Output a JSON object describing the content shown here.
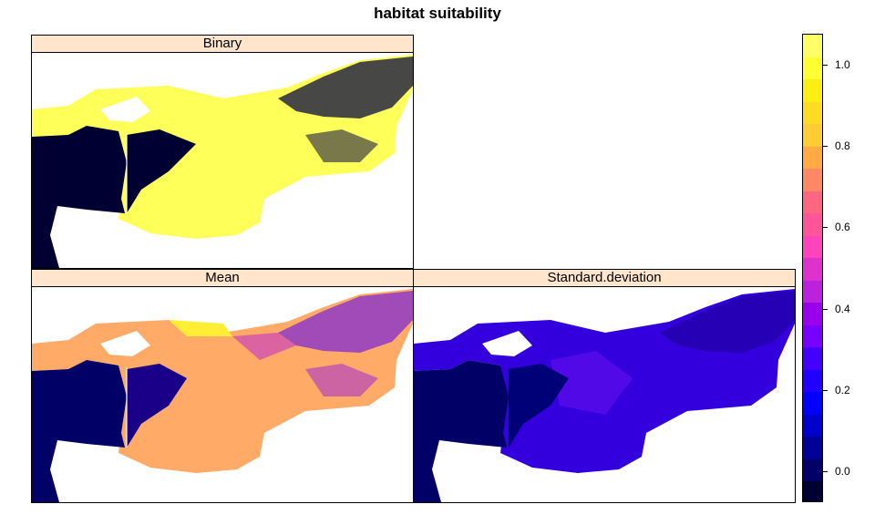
{
  "title": "habitat suitability",
  "panels": [
    {
      "id": "binary",
      "label": "Binary"
    },
    {
      "id": "mean",
      "label": "Mean"
    },
    {
      "id": "sd",
      "label": "Standard.deviation"
    }
  ],
  "colorkey": {
    "range": [
      -0.075,
      1.075
    ],
    "ticks": [
      {
        "value": 0.0,
        "label": "0.0"
      },
      {
        "value": 0.2,
        "label": "0.2"
      },
      {
        "value": 0.4,
        "label": "0.4"
      },
      {
        "value": 0.6,
        "label": "0.6"
      },
      {
        "value": 0.8,
        "label": "0.8"
      },
      {
        "value": 1.0,
        "label": "1.0"
      }
    ],
    "colors": [
      "#000033",
      "#000066",
      "#000099",
      "#0000cc",
      "#0000ff",
      "#2200ff",
      "#4400ff",
      "#7700ff",
      "#9900ee",
      "#bb22dd",
      "#dd33cc",
      "#ff44bb",
      "#ff5599",
      "#ff6680",
      "#ff8866",
      "#ffaa44",
      "#ffcc33",
      "#ffdd22",
      "#ffee11",
      "#ffff33",
      "#ffff66"
    ]
  }
}
